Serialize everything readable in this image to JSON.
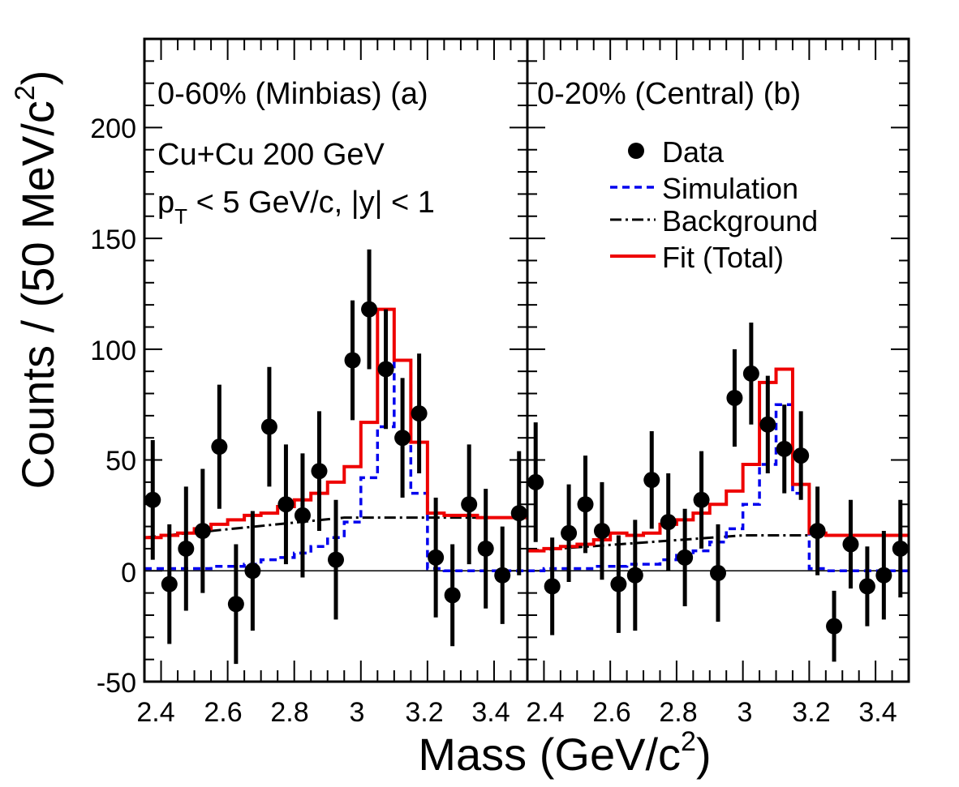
{
  "chart_data": {
    "type": "line",
    "xlabel": "Mass (GeV/c",
    "xlabel_sup": "2",
    "xlabel_suffix": ")",
    "ylabel": "Counts / (50 MeV/c",
    "ylabel_sup": "2",
    "ylabel_suffix": ")",
    "xlim": [
      2.35,
      3.5
    ],
    "ylim": [
      -50,
      240
    ],
    "y_ticks": [
      "-50",
      "0",
      "50",
      "100",
      "150",
      "200"
    ],
    "x_tick_labels_a": [
      "2.4",
      "2.6",
      "2.8",
      "3",
      "3.2",
      "3.4"
    ],
    "x_tick_labels_b": [
      "2.4",
      "2.6",
      "2.8",
      "3",
      "3.2",
      "3.4"
    ],
    "grid": false,
    "zero_line": true,
    "bins": [
      2.35,
      2.4,
      2.45,
      2.5,
      2.55,
      2.6,
      2.65,
      2.7,
      2.75,
      2.8,
      2.85,
      2.9,
      2.95,
      3.0,
      3.05,
      3.1,
      3.15,
      3.2,
      3.25,
      3.3,
      3.35,
      3.4,
      3.45,
      3.5
    ],
    "legend": {
      "position": "top-right of panel (b)",
      "data": "Data",
      "simulation": "Simulation",
      "background": "Background",
      "fit": "Fit (Total)"
    },
    "colors": {
      "data": "#000000",
      "simulation": "#0000ee",
      "background": "#000000",
      "fit": "#ee0000"
    },
    "panels": [
      {
        "id": "a",
        "title": "0-60% (Minbias) (a)",
        "collision": "Cu+Cu 200 GeV",
        "cuts_p": "p",
        "cuts_sub": "T",
        "cuts_rest": " < 5 GeV/c, |y| < 1",
        "data_points": [
          {
            "x": 2.375,
            "y": 32,
            "err": 27
          },
          {
            "x": 2.425,
            "y": -6,
            "err": 27
          },
          {
            "x": 2.475,
            "y": 10,
            "err": 28
          },
          {
            "x": 2.525,
            "y": 18,
            "err": 28
          },
          {
            "x": 2.575,
            "y": 56,
            "err": 28
          },
          {
            "x": 2.625,
            "y": -15,
            "err": 27
          },
          {
            "x": 2.675,
            "y": 0,
            "err": 27
          },
          {
            "x": 2.725,
            "y": 65,
            "err": 27
          },
          {
            "x": 2.775,
            "y": 30,
            "err": 27
          },
          {
            "x": 2.825,
            "y": 25,
            "err": 28
          },
          {
            "x": 2.875,
            "y": 45,
            "err": 27
          },
          {
            "x": 2.925,
            "y": 5,
            "err": 27
          },
          {
            "x": 2.975,
            "y": 95,
            "err": 27
          },
          {
            "x": 3.025,
            "y": 118,
            "err": 27
          },
          {
            "x": 3.075,
            "y": 91,
            "err": 27
          },
          {
            "x": 3.125,
            "y": 60,
            "err": 27
          },
          {
            "x": 3.175,
            "y": 71,
            "err": 27
          },
          {
            "x": 3.225,
            "y": 6,
            "err": 27
          },
          {
            "x": 3.275,
            "y": -11,
            "err": 23
          },
          {
            "x": 3.325,
            "y": 30,
            "err": 27
          },
          {
            "x": 3.375,
            "y": 10,
            "err": 27
          },
          {
            "x": 3.425,
            "y": -2,
            "err": 22
          },
          {
            "x": 3.475,
            "y": 26,
            "err": 28
          }
        ],
        "simulation": [
          1,
          1,
          1,
          1,
          2,
          2,
          3,
          5,
          6,
          8,
          11,
          15,
          22,
          42,
          65,
          95,
          35,
          1,
          0,
          0,
          0,
          0,
          0
        ],
        "fit": [
          15,
          16,
          17,
          19,
          21,
          23,
          25,
          26,
          29,
          32,
          35,
          40,
          47,
          67,
          118,
          95,
          58,
          26,
          25,
          25,
          24,
          24,
          24
        ],
        "background": [
          {
            "x": 2.35,
            "y": 15
          },
          {
            "x": 2.95,
            "y": 24
          },
          {
            "x": 3.5,
            "y": 24
          }
        ]
      },
      {
        "id": "b",
        "title": "0-20% (Central)  (b)",
        "data_points": [
          {
            "x": 2.375,
            "y": 40,
            "err": 27
          },
          {
            "x": 2.425,
            "y": -7,
            "err": 22
          },
          {
            "x": 2.475,
            "y": 17,
            "err": 22
          },
          {
            "x": 2.525,
            "y": 30,
            "err": 22
          },
          {
            "x": 2.575,
            "y": 18,
            "err": 22
          },
          {
            "x": 2.625,
            "y": -6,
            "err": 22
          },
          {
            "x": 2.675,
            "y": -2,
            "err": 25
          },
          {
            "x": 2.725,
            "y": 41,
            "err": 22
          },
          {
            "x": 2.775,
            "y": 22,
            "err": 22
          },
          {
            "x": 2.825,
            "y": 6,
            "err": 22
          },
          {
            "x": 2.875,
            "y": 32,
            "err": 22
          },
          {
            "x": 2.925,
            "y": -1,
            "err": 22
          },
          {
            "x": 2.975,
            "y": 78,
            "err": 22
          },
          {
            "x": 3.025,
            "y": 89,
            "err": 23
          },
          {
            "x": 3.075,
            "y": 66,
            "err": 22
          },
          {
            "x": 3.125,
            "y": 55,
            "err": 20
          },
          {
            "x": 3.175,
            "y": 52,
            "err": 20
          },
          {
            "x": 3.225,
            "y": 18,
            "err": 20
          },
          {
            "x": 3.275,
            "y": -25,
            "err": 16
          },
          {
            "x": 3.325,
            "y": 12,
            "err": 20
          },
          {
            "x": 3.375,
            "y": -7,
            "err": 18
          },
          {
            "x": 3.425,
            "y": -2,
            "err": 20
          },
          {
            "x": 3.475,
            "y": 10,
            "err": 22
          }
        ],
        "simulation": [
          0,
          1,
          1,
          1,
          2,
          2,
          3,
          3,
          5,
          7,
          9,
          13,
          19,
          30,
          48,
          75,
          35,
          1,
          0,
          0,
          0,
          0,
          0
        ],
        "fit": [
          9,
          10,
          11,
          12,
          14,
          17,
          16,
          17,
          21,
          23,
          26,
          30,
          36,
          48,
          85,
          91,
          39,
          17,
          16,
          16,
          16,
          16,
          16
        ],
        "background": [
          {
            "x": 2.35,
            "y": 9
          },
          {
            "x": 3.0,
            "y": 16
          },
          {
            "x": 3.5,
            "y": 16
          }
        ]
      }
    ]
  }
}
